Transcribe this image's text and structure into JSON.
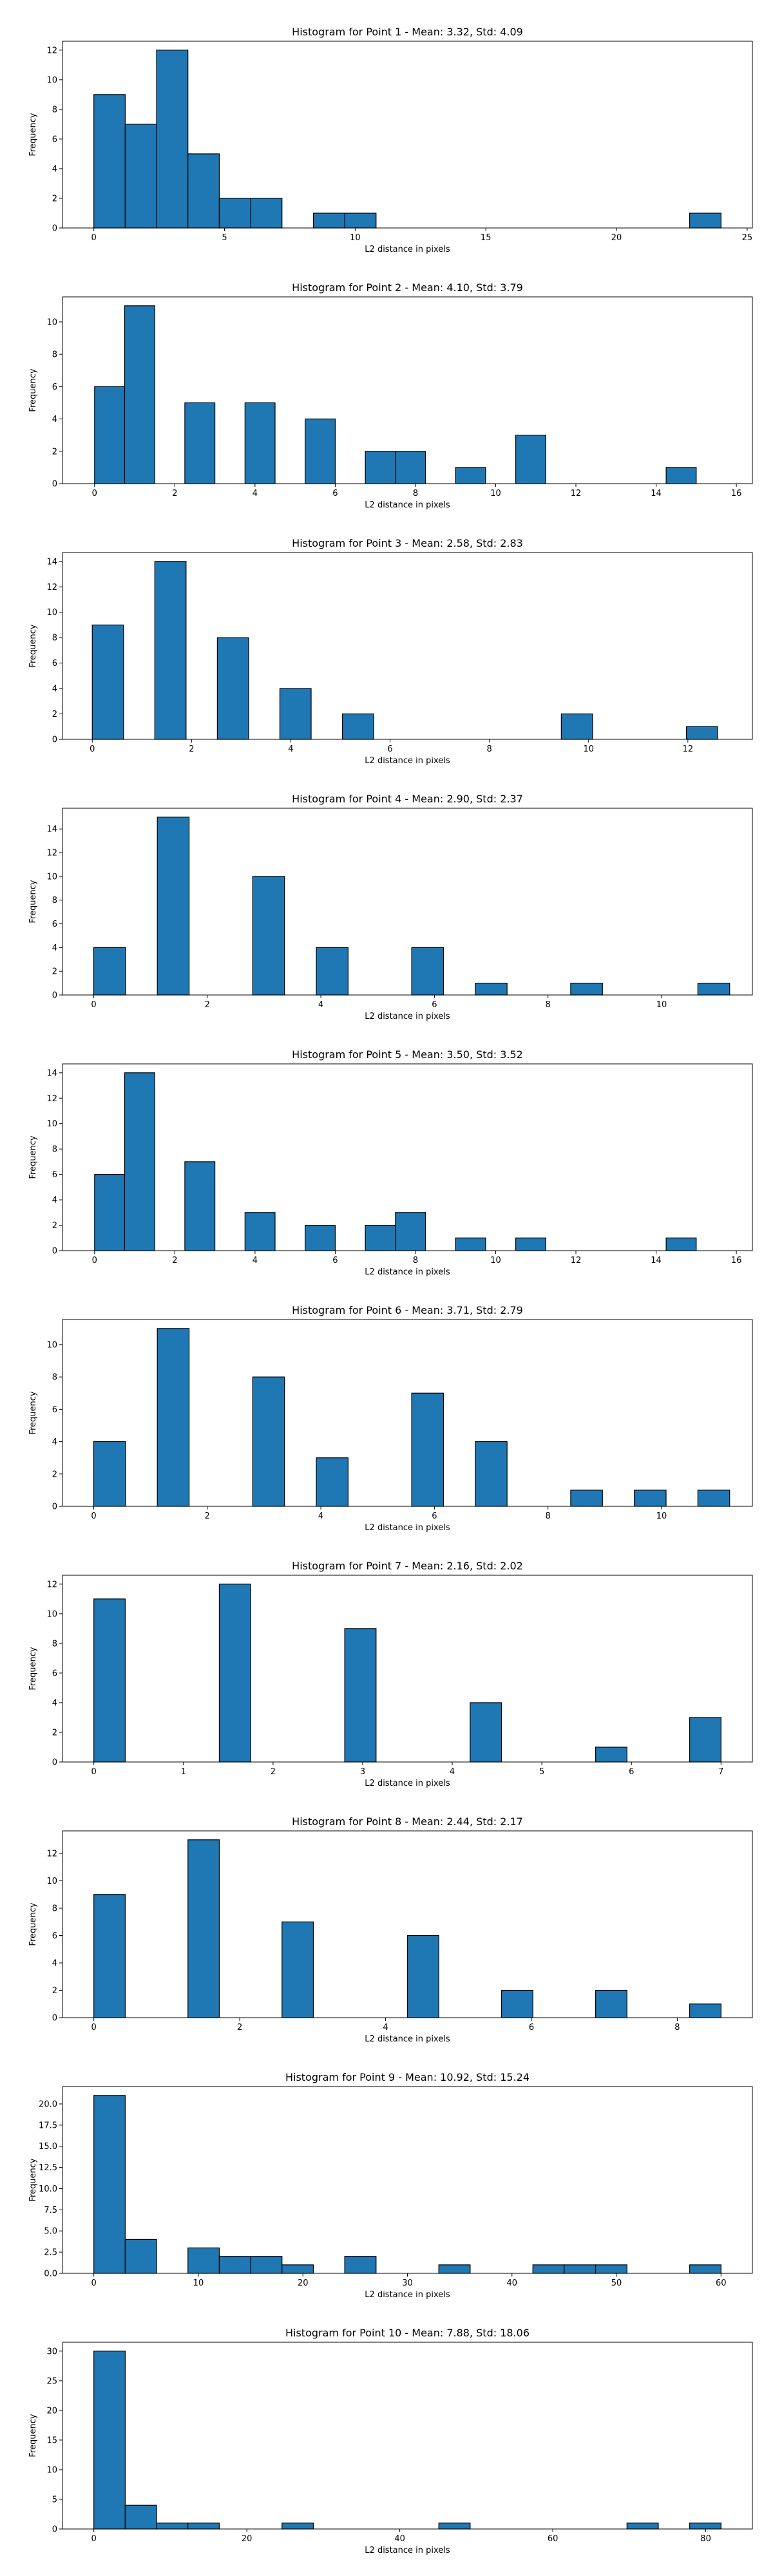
{
  "chart_data": [
    {
      "type": "histogram",
      "title": "Histogram for Point 1 - Mean: 3.32, Std: 4.09",
      "xlabel": "L2 distance in pixels",
      "ylabel": "Frequency",
      "xlim": [
        -1.2,
        25.2
      ],
      "ylim": [
        0,
        12.6
      ],
      "xticks": [
        0,
        5,
        10,
        15,
        20,
        25
      ],
      "xtick_labels": [
        "0",
        "5",
        "10",
        "15",
        "20",
        "25"
      ],
      "yticks": [
        0,
        2,
        4,
        6,
        8,
        10,
        12
      ],
      "ytick_labels": [
        "0",
        "2",
        "4",
        "6",
        "8",
        "10",
        "12"
      ],
      "bin_edges": [
        0,
        1.2,
        2.4,
        3.6,
        4.8,
        6.0,
        7.2,
        8.4,
        9.6,
        10.8,
        12.0,
        13.2,
        14.4,
        15.6,
        16.8,
        18.0,
        19.2,
        20.4,
        21.6,
        22.8,
        24.0
      ],
      "values": [
        9,
        7,
        12,
        5,
        2,
        2,
        0,
        1,
        1,
        0,
        0,
        0,
        0,
        0,
        0,
        0,
        0,
        0,
        0,
        1
      ],
      "grid": false
    },
    {
      "type": "histogram",
      "title": "Histogram for Point 2 - Mean: 4.10, Std: 3.79",
      "xlabel": "L2 distance in pixels",
      "ylabel": "Frequency",
      "xlim": [
        -0.8,
        16.4
      ],
      "ylim": [
        0,
        11.55
      ],
      "xticks": [
        0,
        2,
        4,
        6,
        8,
        10,
        12,
        14,
        16
      ],
      "xtick_labels": [
        "0",
        "2",
        "4",
        "6",
        "8",
        "10",
        "12",
        "14",
        "16"
      ],
      "yticks": [
        0,
        2,
        4,
        6,
        8,
        10
      ],
      "ytick_labels": [
        "0",
        "2",
        "4",
        "6",
        "8",
        "10"
      ],
      "bin_edges": [
        0,
        0.75,
        1.5,
        2.25,
        3.0,
        3.75,
        4.5,
        5.25,
        6.0,
        6.75,
        7.5,
        8.25,
        9.0,
        9.75,
        10.5,
        11.25,
        12.0,
        12.75,
        13.5,
        14.25,
        15.0
      ],
      "values": [
        6,
        11,
        0,
        5,
        0,
        5,
        0,
        4,
        0,
        2,
        2,
        0,
        1,
        0,
        3,
        0,
        0,
        0,
        0,
        1
      ],
      "grid": false
    },
    {
      "type": "histogram",
      "title": "Histogram for Point 3 - Mean: 2.58, Std: 2.83",
      "xlabel": "L2 distance in pixels",
      "ylabel": "Frequency",
      "xlim": [
        -0.6,
        13.3
      ],
      "ylim": [
        0,
        14.7
      ],
      "xticks": [
        0,
        2,
        4,
        6,
        8,
        10,
        12
      ],
      "xtick_labels": [
        "0",
        "2",
        "4",
        "6",
        "8",
        "10",
        "12"
      ],
      "yticks": [
        0,
        2,
        4,
        6,
        8,
        10,
        12,
        14
      ],
      "ytick_labels": [
        "0",
        "2",
        "4",
        "6",
        "8",
        "10",
        "12",
        "14"
      ],
      "bin_edges": [
        0,
        0.63,
        1.26,
        1.89,
        2.52,
        3.15,
        3.78,
        4.41,
        5.04,
        5.67,
        6.3,
        6.93,
        7.56,
        8.19,
        8.82,
        9.45,
        10.08,
        10.71,
        11.34,
        11.97,
        12.6
      ],
      "values": [
        9,
        0,
        14,
        0,
        8,
        0,
        4,
        0,
        2,
        0,
        0,
        0,
        0,
        0,
        0,
        2,
        0,
        0,
        0,
        1
      ],
      "grid": false
    },
    {
      "type": "histogram",
      "title": "Histogram for Point 4 - Mean: 2.90, Std: 2.37",
      "xlabel": "L2 distance in pixels",
      "ylabel": "Frequency",
      "xlim": [
        -0.55,
        11.6
      ],
      "ylim": [
        0,
        15.75
      ],
      "xticks": [
        0,
        2,
        4,
        6,
        8,
        10
      ],
      "xtick_labels": [
        "0",
        "2",
        "4",
        "6",
        "8",
        "10"
      ],
      "yticks": [
        0,
        2,
        4,
        6,
        8,
        10,
        12,
        14
      ],
      "ytick_labels": [
        "0",
        "2",
        "4",
        "6",
        "8",
        "10",
        "12",
        "14"
      ],
      "bin_edges": [
        0,
        0.56,
        1.12,
        1.68,
        2.24,
        2.8,
        3.36,
        3.92,
        4.48,
        5.04,
        5.6,
        6.16,
        6.72,
        7.28,
        7.84,
        8.4,
        8.96,
        9.52,
        10.08,
        10.64,
        11.2
      ],
      "values": [
        4,
        0,
        15,
        0,
        0,
        10,
        0,
        4,
        0,
        0,
        4,
        0,
        1,
        0,
        0,
        1,
        0,
        0,
        0,
        1
      ],
      "grid": false
    },
    {
      "type": "histogram",
      "title": "Histogram for Point 5 - Mean: 3.50, Std: 3.52",
      "xlabel": "L2 distance in pixels",
      "ylabel": "Frequency",
      "xlim": [
        -0.8,
        16.4
      ],
      "ylim": [
        0,
        14.7
      ],
      "xticks": [
        0,
        2,
        4,
        6,
        8,
        10,
        12,
        14,
        16
      ],
      "xtick_labels": [
        "0",
        "2",
        "4",
        "6",
        "8",
        "10",
        "12",
        "14",
        "16"
      ],
      "yticks": [
        0,
        2,
        4,
        6,
        8,
        10,
        12,
        14
      ],
      "ytick_labels": [
        "0",
        "2",
        "4",
        "6",
        "8",
        "10",
        "12",
        "14"
      ],
      "bin_edges": [
        0,
        0.75,
        1.5,
        2.25,
        3.0,
        3.75,
        4.5,
        5.25,
        6.0,
        6.75,
        7.5,
        8.25,
        9.0,
        9.75,
        10.5,
        11.25,
        12.0,
        12.75,
        13.5,
        14.25,
        15.0
      ],
      "values": [
        6,
        14,
        0,
        7,
        0,
        3,
        0,
        2,
        0,
        2,
        3,
        0,
        1,
        0,
        1,
        0,
        0,
        0,
        0,
        1
      ],
      "grid": false
    },
    {
      "type": "histogram",
      "title": "Histogram for Point 6 - Mean: 3.71, Std: 2.79",
      "xlabel": "L2 distance in pixels",
      "ylabel": "Frequency",
      "xlim": [
        -0.55,
        11.6
      ],
      "ylim": [
        0,
        11.55
      ],
      "xticks": [
        0,
        2,
        4,
        6,
        8,
        10
      ],
      "xtick_labels": [
        "0",
        "2",
        "4",
        "6",
        "8",
        "10"
      ],
      "yticks": [
        0,
        2,
        4,
        6,
        8,
        10
      ],
      "ytick_labels": [
        "0",
        "2",
        "4",
        "6",
        "8",
        "10"
      ],
      "bin_edges": [
        0,
        0.56,
        1.12,
        1.68,
        2.24,
        2.8,
        3.36,
        3.92,
        4.48,
        5.04,
        5.6,
        6.16,
        6.72,
        7.28,
        7.84,
        8.4,
        8.96,
        9.52,
        10.08,
        10.64,
        11.2
      ],
      "values": [
        4,
        0,
        11,
        0,
        0,
        8,
        0,
        3,
        0,
        0,
        7,
        0,
        4,
        0,
        0,
        1,
        0,
        1,
        0,
        1
      ],
      "grid": false
    },
    {
      "type": "histogram",
      "title": "Histogram for Point 7 - Mean: 2.16, Std: 2.02",
      "xlabel": "L2 distance in pixels",
      "ylabel": "Frequency",
      "xlim": [
        -0.35,
        7.35
      ],
      "ylim": [
        0,
        12.6
      ],
      "xticks": [
        0,
        1,
        2,
        3,
        4,
        5,
        6,
        7
      ],
      "xtick_labels": [
        "0",
        "1",
        "2",
        "3",
        "4",
        "5",
        "6",
        "7"
      ],
      "yticks": [
        0,
        2,
        4,
        6,
        8,
        10,
        12
      ],
      "ytick_labels": [
        "0",
        "2",
        "4",
        "6",
        "8",
        "10",
        "12"
      ],
      "bin_edges": [
        0,
        0.35,
        0.7,
        1.05,
        1.4,
        1.75,
        2.1,
        2.45,
        2.8,
        3.15,
        3.5,
        3.85,
        4.2,
        4.55,
        4.9,
        5.25,
        5.6,
        5.95,
        6.3,
        6.65,
        7.0
      ],
      "values": [
        11,
        0,
        0,
        0,
        12,
        0,
        0,
        0,
        9,
        0,
        0,
        0,
        4,
        0,
        0,
        0,
        1,
        0,
        0,
        3
      ],
      "grid": false
    },
    {
      "type": "histogram",
      "title": "Histogram for Point 8 - Mean: 2.44, Std: 2.17",
      "xlabel": "L2 distance in pixels",
      "ylabel": "Frequency",
      "xlim": [
        -0.43,
        9.03
      ],
      "ylim": [
        0,
        13.65
      ],
      "xticks": [
        0,
        2,
        4,
        6,
        8
      ],
      "xtick_labels": [
        "0",
        "2",
        "4",
        "6",
        "8"
      ],
      "yticks": [
        0,
        2,
        4,
        6,
        8,
        10,
        12
      ],
      "ytick_labels": [
        "0",
        "2",
        "4",
        "6",
        "8",
        "10",
        "12"
      ],
      "bin_edges": [
        0,
        0.43,
        0.86,
        1.29,
        1.72,
        2.15,
        2.58,
        3.01,
        3.44,
        3.87,
        4.3,
        4.73,
        5.16,
        5.59,
        6.02,
        6.45,
        6.88,
        7.31,
        7.74,
        8.17,
        8.6
      ],
      "values": [
        9,
        0,
        0,
        13,
        0,
        0,
        7,
        0,
        0,
        0,
        6,
        0,
        0,
        2,
        0,
        0,
        2,
        0,
        0,
        1
      ],
      "grid": false
    },
    {
      "type": "histogram",
      "title": "Histogram for Point 9 - Mean: 10.92, Std: 15.24",
      "xlabel": "L2 distance in pixels",
      "ylabel": "Frequency",
      "xlim": [
        -3.0,
        63.0
      ],
      "ylim": [
        0,
        22.05
      ],
      "xticks": [
        0,
        10,
        20,
        30,
        40,
        50,
        60
      ],
      "xtick_labels": [
        "0",
        "10",
        "20",
        "30",
        "40",
        "50",
        "60"
      ],
      "yticks": [
        0,
        2.5,
        5.0,
        7.5,
        10.0,
        12.5,
        15.0,
        17.5,
        20.0
      ],
      "ytick_labels": [
        "0.0",
        "2.5",
        "5.0",
        "7.5",
        "10.0",
        "12.5",
        "15.0",
        "17.5",
        "20.0"
      ],
      "bin_edges": [
        0,
        3,
        6,
        9,
        12,
        15,
        18,
        21,
        24,
        27,
        30,
        33,
        36,
        39,
        42,
        45,
        48,
        51,
        54,
        57,
        60
      ],
      "values": [
        21,
        4,
        0,
        3,
        2,
        2,
        1,
        0,
        2,
        0,
        0,
        1,
        0,
        0,
        1,
        1,
        1,
        0,
        0,
        1
      ],
      "grid": false
    },
    {
      "type": "histogram",
      "title": "Histogram for Point 10 - Mean: 7.88, Std: 18.06",
      "xlabel": "L2 distance in pixels",
      "ylabel": "Frequency",
      "xlim": [
        -4.1,
        86.1
      ],
      "ylim": [
        0,
        31.5
      ],
      "xticks": [
        0,
        20,
        40,
        60,
        80
      ],
      "xtick_labels": [
        "0",
        "20",
        "40",
        "60",
        "80"
      ],
      "yticks": [
        0,
        5,
        10,
        15,
        20,
        25,
        30
      ],
      "ytick_labels": [
        "0",
        "5",
        "10",
        "15",
        "20",
        "25",
        "30"
      ],
      "bin_edges": [
        0,
        4.1,
        8.2,
        12.3,
        16.4,
        20.5,
        24.6,
        28.7,
        32.8,
        36.9,
        41.0,
        45.1,
        49.2,
        53.3,
        57.4,
        61.5,
        65.6,
        69.7,
        73.8,
        77.9,
        82.0
      ],
      "values": [
        30,
        4,
        1,
        1,
        0,
        0,
        1,
        0,
        0,
        0,
        0,
        1,
        0,
        0,
        0,
        0,
        0,
        1,
        0,
        1
      ],
      "grid": false
    }
  ],
  "style": {
    "bar_fill": "#1f77b4",
    "bar_edge": "#000000",
    "axis_color": "#000000"
  }
}
